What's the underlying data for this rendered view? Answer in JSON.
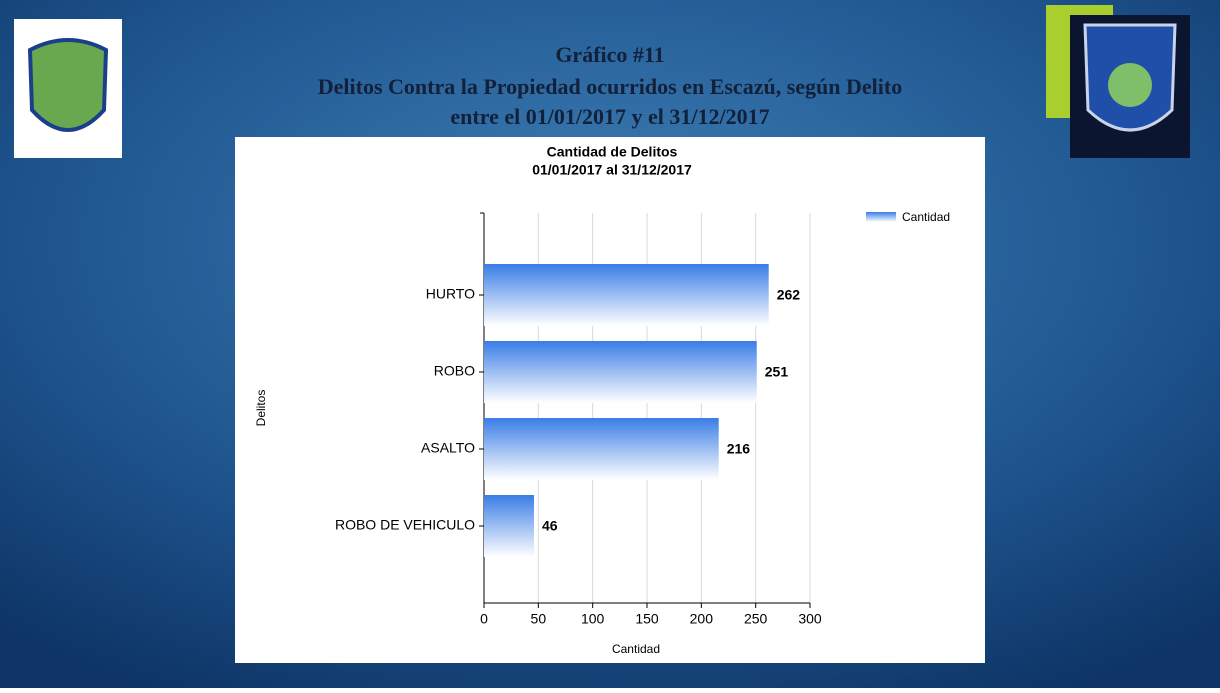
{
  "slide": {
    "title_lines": [
      "Gráfico #11",
      "Delitos Contra la Propiedad ocurridos en Escazú, según Delito",
      "entre el 01/01/2017 y el 31/12/2017"
    ]
  },
  "chart_data": {
    "type": "bar",
    "orientation": "horizontal",
    "title": "Cantidad de Delitos",
    "subtitle": "01/01/2017 al 31/12/2017",
    "x_label": "Cantidad",
    "y_label": "Delitos",
    "categories": [
      "HURTO",
      "ROBO",
      "ASALTO",
      "ROBO DE VEHICULO"
    ],
    "series": [
      {
        "name": "Cantidad",
        "color": "#3a7de6",
        "values": [
          262,
          251,
          216,
          46
        ]
      }
    ],
    "xlim": [
      0,
      300
    ],
    "xticks": [
      0,
      50,
      100,
      150,
      200,
      250,
      300
    ],
    "grid": true,
    "legend": "top-right"
  }
}
